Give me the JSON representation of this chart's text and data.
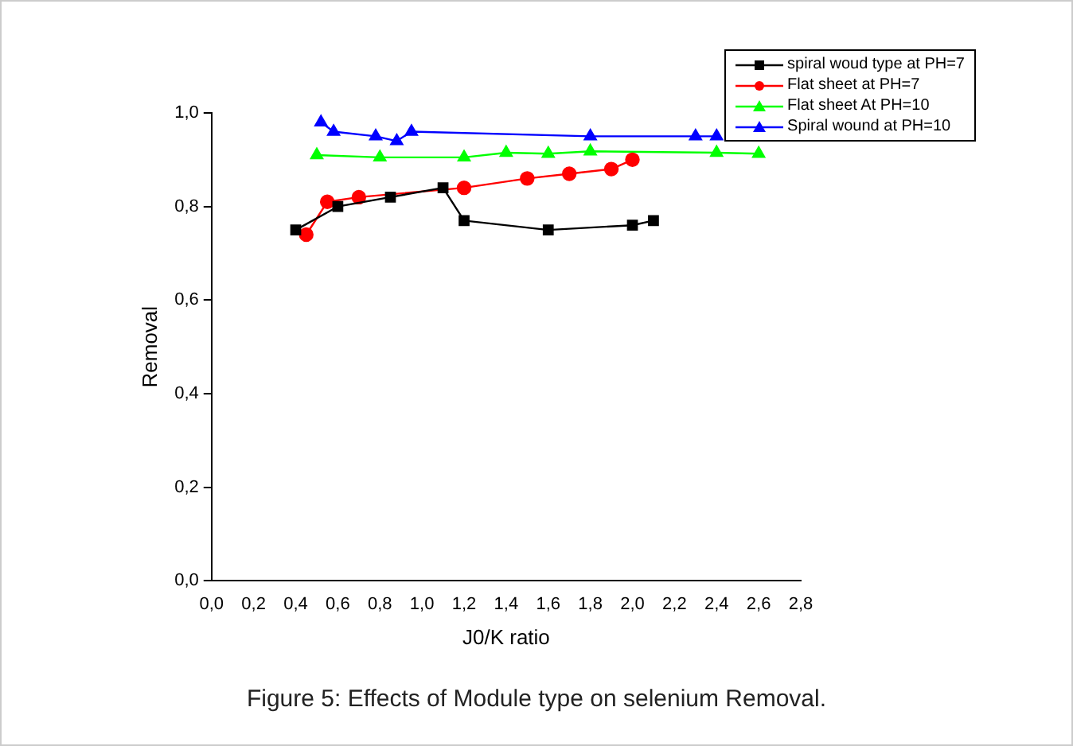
{
  "chart_data": {
    "type": "line",
    "xlabel": "J0/K ratio",
    "ylabel": "Removal",
    "annotations": [
      "Figure 5: Effects of Module type on selenium Removal."
    ],
    "xlim": [
      0,
      2.8
    ],
    "xticks": [
      {
        "value": 0,
        "label": "0,0"
      },
      {
        "value": 0.2,
        "label": "0,2"
      },
      {
        "value": 0.4,
        "label": "0,4"
      },
      {
        "value": 0.6,
        "label": "0,6"
      },
      {
        "value": 0.8,
        "label": "0,8"
      },
      {
        "value": 1.0,
        "label": "1,0"
      },
      {
        "value": 1.2,
        "label": "1,2"
      },
      {
        "value": 1.4,
        "label": "1,4"
      },
      {
        "value": 1.6,
        "label": "1,6"
      },
      {
        "value": 1.8,
        "label": "1,8"
      },
      {
        "value": 2.0,
        "label": "2,0"
      },
      {
        "value": 2.2,
        "label": "2,2"
      },
      {
        "value": 2.4,
        "label": "2,4"
      },
      {
        "value": 2.6,
        "label": "2,6"
      },
      {
        "value": 2.8,
        "label": "2,8"
      }
    ],
    "ylim": [
      0,
      1.0
    ],
    "yticks": [
      {
        "value": 0,
        "label": "0,0"
      },
      {
        "value": 0.2,
        "label": "0,2"
      },
      {
        "value": 0.4,
        "label": "0,4"
      },
      {
        "value": 0.6,
        "label": "0,6"
      },
      {
        "value": 0.8,
        "label": "0,8"
      },
      {
        "value": 1.0,
        "label": "1,0"
      }
    ],
    "grid": false,
    "legend": "top right",
    "line_style": "solid",
    "series": [
      {
        "name": "spiral woud type at PH=7",
        "color": "#000000",
        "marker": "square",
        "x": [
          0.4,
          0.6,
          0.85,
          1.1,
          1.2,
          1.6,
          2.0,
          2.1
        ],
        "values": [
          0.75,
          0.8,
          0.82,
          0.84,
          0.77,
          0.75,
          0.76,
          0.77
        ]
      },
      {
        "name": "Flat sheet at PH=7",
        "color": "#ff0000",
        "marker": "circle",
        "x": [
          0.45,
          0.55,
          0.7,
          1.2,
          1.5,
          1.7,
          1.9,
          2.0
        ],
        "values": [
          0.74,
          0.81,
          0.82,
          0.84,
          0.86,
          0.87,
          0.88,
          0.9
        ]
      },
      {
        "name": "Flat sheet At PH=10",
        "color": "#00ff00",
        "marker": "triangle",
        "x": [
          0.5,
          0.8,
          1.2,
          1.4,
          1.6,
          1.8,
          2.4,
          2.6
        ],
        "values": [
          0.91,
          0.905,
          0.905,
          0.915,
          0.913,
          0.918,
          0.915,
          0.913
        ]
      },
      {
        "name": "Spiral wound at PH=10",
        "color": "#0000ff",
        "marker": "triangle",
        "x": [
          0.52,
          0.58,
          0.78,
          0.88,
          0.95,
          1.8,
          2.3,
          2.4
        ],
        "values": [
          0.98,
          0.96,
          0.95,
          0.94,
          0.96,
          0.95,
          0.95,
          0.95
        ]
      }
    ]
  }
}
